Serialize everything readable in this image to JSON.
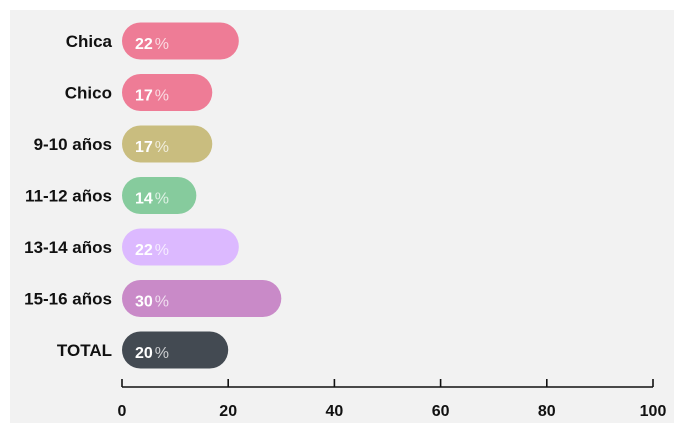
{
  "chart_data": {
    "type": "bar",
    "orientation": "horizontal",
    "title": "",
    "categories": [
      "Chica",
      "Chico",
      "9-10 años",
      "11-12 años",
      "13-14 años",
      "15-16 años",
      "TOTAL"
    ],
    "values": [
      22,
      17,
      17,
      14,
      22,
      30,
      20
    ],
    "value_suffix": "%",
    "xlim": [
      0,
      100
    ],
    "xticks": [
      0,
      20,
      40,
      60,
      80,
      100
    ],
    "grid": false,
    "colors": [
      "#ee7c96",
      "#ee7c96",
      "#c9bd7f",
      "#86cb9d",
      "#dcb9ff",
      "#c98ac8",
      "#434a52"
    ],
    "title_color": "#c48ad0",
    "background": "#f2f2f2"
  }
}
